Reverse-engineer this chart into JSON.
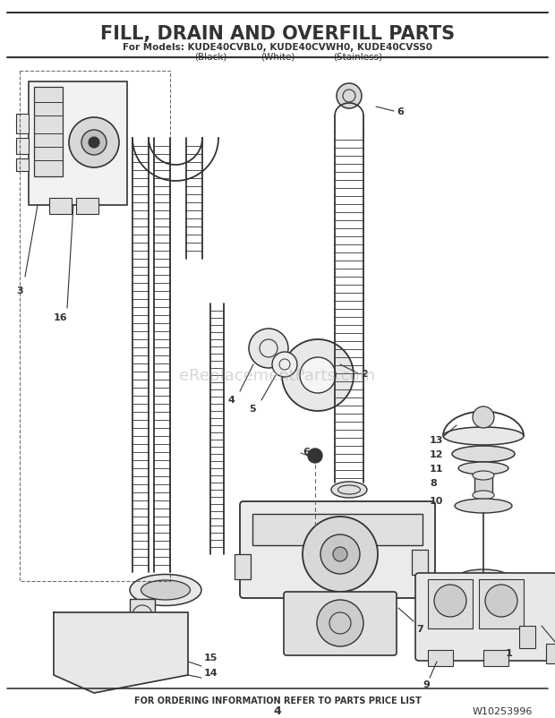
{
  "title": "FILL, DRAIN AND OVERFILL PARTS",
  "subtitle_line1": "For Models: KUDE40CVBL0, KUDE40CVWH0, KUDE40CVSS0",
  "subtitle_line2_parts": [
    "(Black)",
    "(White)",
    "(Stainless)"
  ],
  "footer_center": "FOR ORDERING INFORMATION REFER TO PARTS PRICE LIST",
  "footer_page": "4",
  "footer_model": "W10253996",
  "watermark": "eReplacementParts.com",
  "bg_color": "#ffffff",
  "line_color": "#333333",
  "gray_fill": "#e8e8e8",
  "light_gray": "#f2f2f2"
}
